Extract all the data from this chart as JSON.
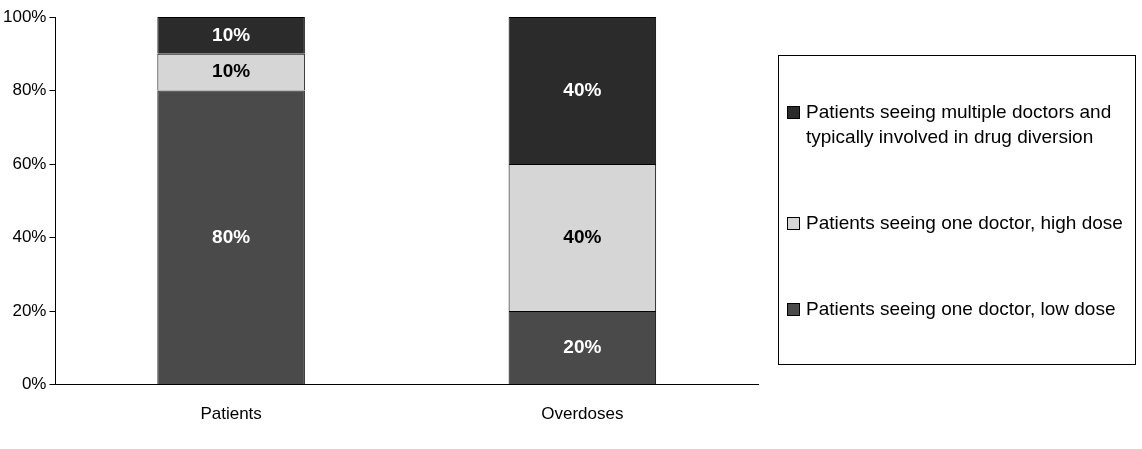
{
  "chart_data": {
    "type": "bar",
    "stacked": true,
    "categories": [
      "Patients",
      "Overdoses"
    ],
    "series": [
      {
        "name": "Patients seeing one doctor, low dose",
        "color": "#4a4a4a",
        "values": [
          80,
          20
        ],
        "value_labels": [
          "80%",
          "20%"
        ]
      },
      {
        "name": "Patients seeing one doctor, high dose",
        "color": "#d6d6d6",
        "values": [
          10,
          40
        ],
        "value_labels": [
          "10%",
          "40%"
        ]
      },
      {
        "name": "Patients seeing multiple doctors and typically involved in drug diversion",
        "color": "#2b2b2b",
        "values": [
          10,
          40
        ],
        "value_labels": [
          "10%",
          "40%"
        ]
      }
    ],
    "ylim": [
      0,
      100
    ],
    "yticks": [
      {
        "value": 0,
        "label": "0%"
      },
      {
        "value": 20,
        "label": "20%"
      },
      {
        "value": 40,
        "label": "40%"
      },
      {
        "value": 60,
        "label": "60%"
      },
      {
        "value": 80,
        "label": "80%"
      },
      {
        "value": 100,
        "label": "100%"
      }
    ],
    "grid": false,
    "legend": "right"
  }
}
